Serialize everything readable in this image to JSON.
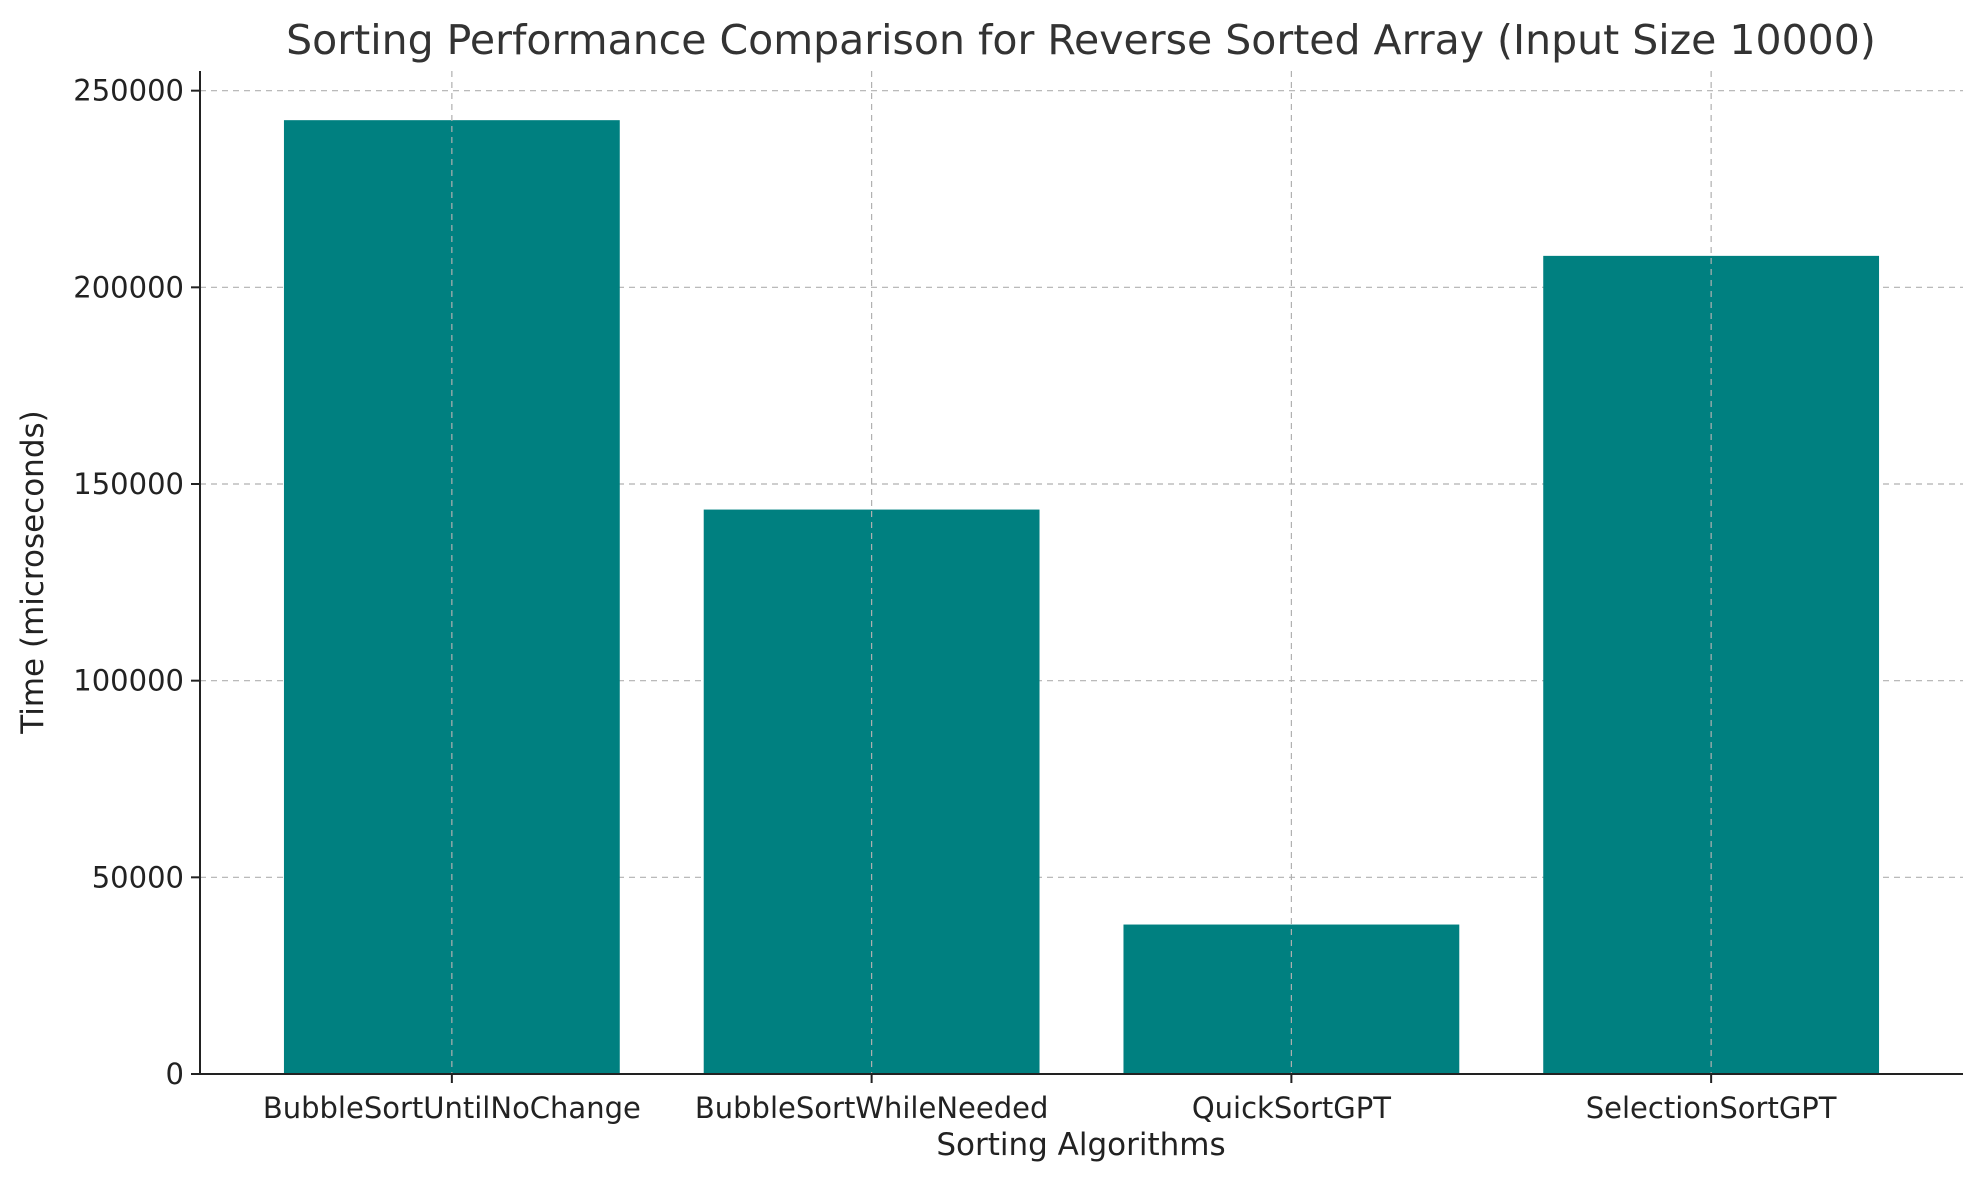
{
  "chart_data": {
    "type": "bar",
    "title": "Sorting Performance Comparison for Reverse Sorted Array (Input Size 10000)",
    "xlabel": "Sorting Algorithms",
    "ylabel": "Time (microseconds)",
    "categories": [
      "BubbleSortUntilNoChange",
      "BubbleSortWhileNeeded",
      "QuickSortGPT",
      "SelectionSortGPT"
    ],
    "values": [
      242500,
      143500,
      38000,
      208000
    ],
    "ylim": [
      0,
      255000
    ],
    "yticks": [
      0,
      50000,
      100000,
      150000,
      200000,
      250000
    ],
    "bar_color": "#008080",
    "grid": true
  }
}
